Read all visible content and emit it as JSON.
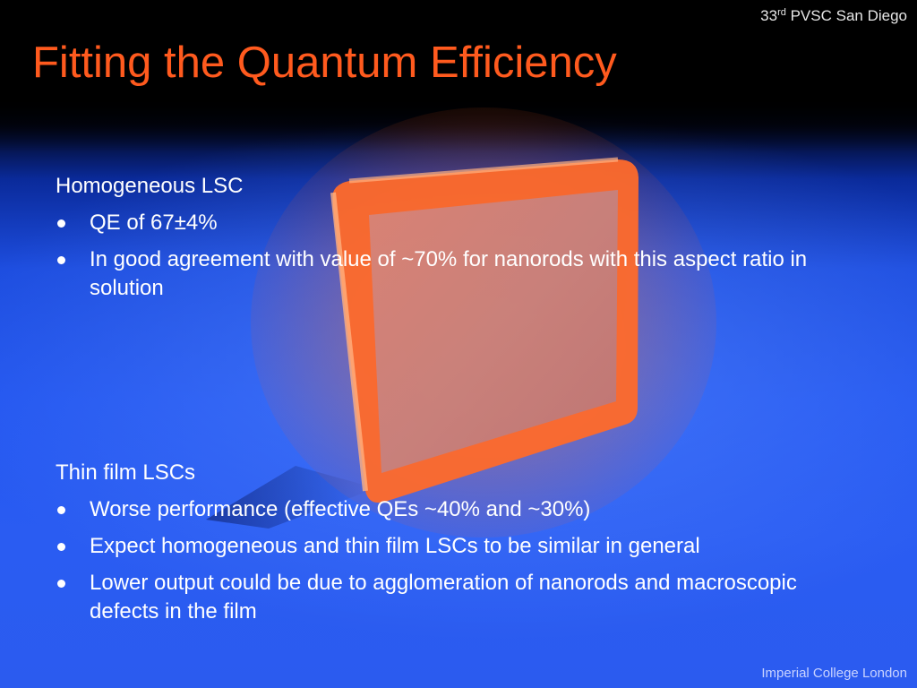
{
  "header": {
    "conference_prefix": "33",
    "conference_sup": "rd",
    "conference_rest": " PVSC San Diego"
  },
  "title": "Fitting the Quantum Efficiency",
  "section1": {
    "heading": "Homogeneous LSC",
    "bullets": [
      "QE of 67±4%",
      "In good agreement with value of ~70% for nanorods with this aspect ratio in solution"
    ]
  },
  "section2": {
    "heading": "Thin film LSCs",
    "bullets": [
      "Worse performance (effective QEs ~40% and ~30%)",
      "Expect homogeneous and thin film LSCs to be similar in general",
      "Lower output could be due to agglomeration of nanorods and macroscopic defects in the film"
    ]
  },
  "footer": "Imperial College London",
  "colors": {
    "title": "#ff5a1e",
    "text": "#ffffff",
    "background_blue": "#2a5cf2",
    "lsc_orange": "#ff6a2a"
  }
}
